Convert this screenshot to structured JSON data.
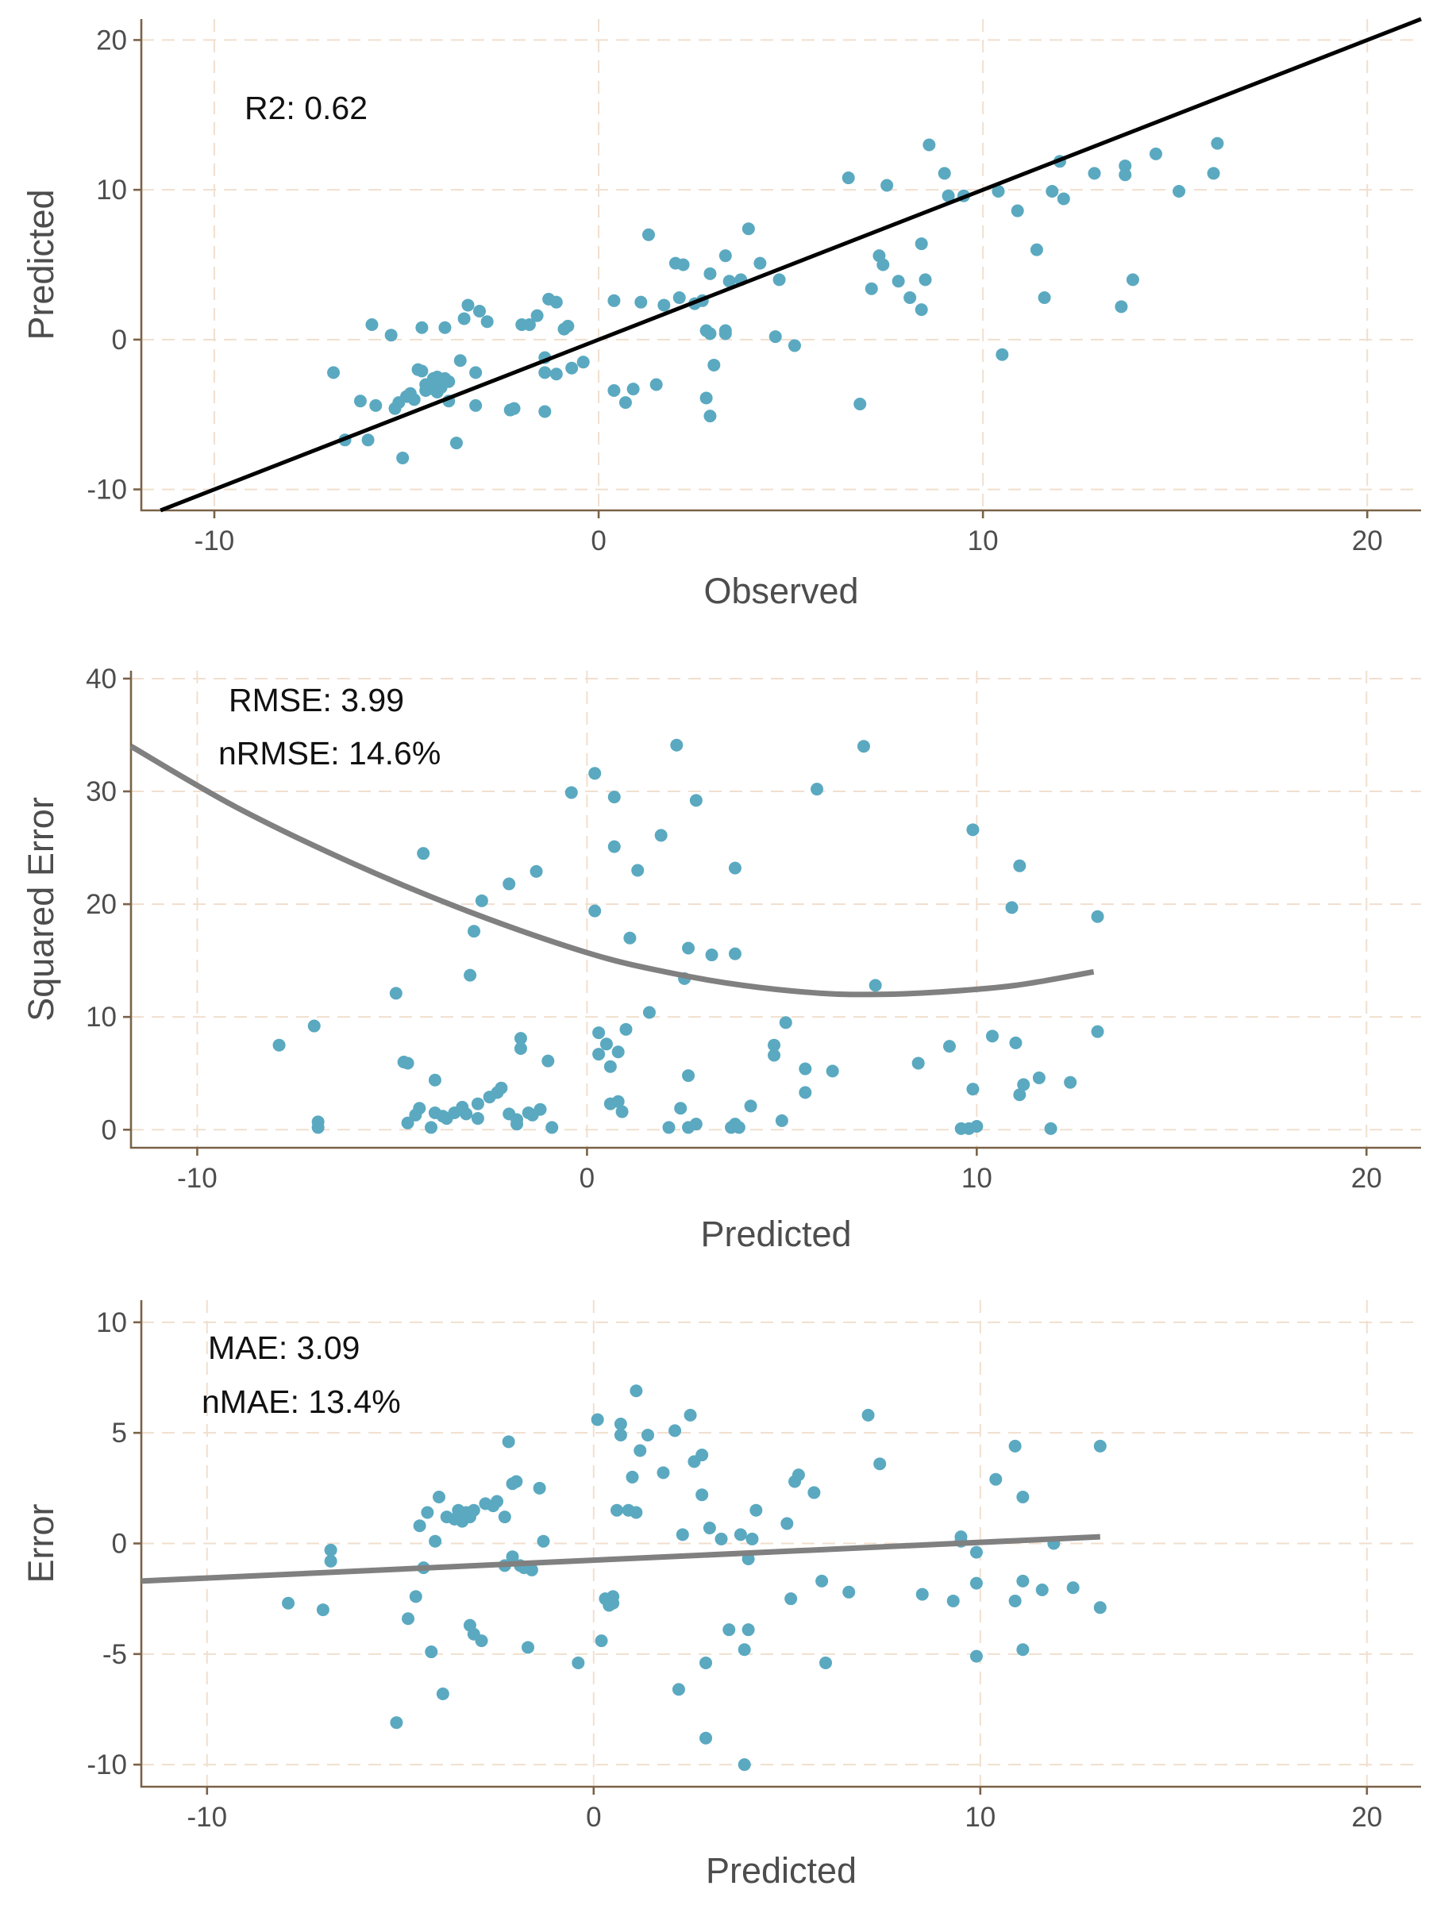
{
  "colors": {
    "points": "#5aa9c0",
    "reference_line": "#000000",
    "smooth_line": "#808080",
    "axis": "#7a6248",
    "grid": "#f1dfce"
  },
  "chart_data": [
    {
      "type": "scatter",
      "xlabel": "Observed",
      "ylabel": "Predicted",
      "xlim": [
        -11.9,
        21.4
      ],
      "ylim": [
        -11.4,
        21.4
      ],
      "xticks": [
        -10,
        0,
        10,
        20
      ],
      "yticks": [
        -10,
        0,
        10,
        20
      ],
      "tick_labels_x": [
        "-10",
        "0",
        "10",
        "20"
      ],
      "tick_labels_y": [
        "-10",
        "0",
        "10",
        "20"
      ],
      "grid": true,
      "annotations": [
        "R2: 0.62"
      ],
      "reference_line": {
        "slope": 1,
        "intercept": 0
      },
      "points": [
        [
          -6.9,
          -2.2
        ],
        [
          -6.6,
          -6.7
        ],
        [
          -6.2,
          -4.1
        ],
        [
          -6.0,
          -6.7
        ],
        [
          -5.9,
          1.0
        ],
        [
          -5.8,
          -4.4
        ],
        [
          -5.4,
          0.3
        ],
        [
          -5.3,
          -4.6
        ],
        [
          -5.2,
          -4.2
        ],
        [
          -5.1,
          -7.9
        ],
        [
          -5.0,
          -3.8
        ],
        [
          -4.9,
          -3.6
        ],
        [
          -4.8,
          -4.0
        ],
        [
          -4.7,
          -2.0
        ],
        [
          -4.6,
          0.8
        ],
        [
          -4.6,
          -2.1
        ],
        [
          -4.5,
          -3.4
        ],
        [
          -4.5,
          -3.0
        ],
        [
          -4.4,
          -3.0
        ],
        [
          -4.3,
          -2.6
        ],
        [
          -4.3,
          -3.3
        ],
        [
          -4.2,
          -2.5
        ],
        [
          -4.2,
          -3.5
        ],
        [
          -4.1,
          -3.2
        ],
        [
          -4.0,
          -2.6
        ],
        [
          -4.0,
          0.8
        ],
        [
          -3.9,
          -2.8
        ],
        [
          -3.9,
          -4.1
        ],
        [
          -3.7,
          -6.9
        ],
        [
          -3.6,
          -1.4
        ],
        [
          -3.5,
          1.4
        ],
        [
          -3.4,
          2.3
        ],
        [
          -3.2,
          -4.4
        ],
        [
          -3.2,
          -2.2
        ],
        [
          -3.1,
          1.9
        ],
        [
          -2.9,
          1.2
        ],
        [
          -2.3,
          -4.7
        ],
        [
          -2.2,
          -4.6
        ],
        [
          -2.0,
          1.0
        ],
        [
          -1.8,
          1.0
        ],
        [
          -1.6,
          1.6
        ],
        [
          -1.4,
          -1.2
        ],
        [
          -1.4,
          -2.2
        ],
        [
          -1.4,
          -4.8
        ],
        [
          -1.3,
          2.7
        ],
        [
          -1.1,
          2.5
        ],
        [
          -1.1,
          -2.3
        ],
        [
          -0.9,
          0.7
        ],
        [
          -0.8,
          0.9
        ],
        [
          -0.7,
          -1.9
        ],
        [
          -0.4,
          -1.5
        ],
        [
          0.4,
          2.6
        ],
        [
          0.4,
          -3.4
        ],
        [
          0.7,
          -4.2
        ],
        [
          0.9,
          -3.3
        ],
        [
          1.1,
          2.5
        ],
        [
          1.3,
          7.0
        ],
        [
          1.5,
          -3.0
        ],
        [
          1.7,
          2.3
        ],
        [
          2.0,
          5.1
        ],
        [
          2.1,
          2.8
        ],
        [
          2.2,
          5.0
        ],
        [
          2.5,
          2.4
        ],
        [
          2.7,
          2.6
        ],
        [
          2.8,
          -3.9
        ],
        [
          2.8,
          0.6
        ],
        [
          2.9,
          4.4
        ],
        [
          2.9,
          0.4
        ],
        [
          2.9,
          -5.1
        ],
        [
          3.0,
          -1.7
        ],
        [
          3.3,
          0.6
        ],
        [
          3.3,
          0.4
        ],
        [
          3.3,
          5.6
        ],
        [
          3.4,
          3.9
        ],
        [
          3.7,
          4.0
        ],
        [
          3.9,
          7.4
        ],
        [
          4.2,
          5.1
        ],
        [
          4.6,
          0.2
        ],
        [
          4.7,
          4.0
        ],
        [
          5.1,
          -0.4
        ],
        [
          6.5,
          10.8
        ],
        [
          6.8,
          -4.3
        ],
        [
          7.1,
          3.4
        ],
        [
          7.3,
          5.6
        ],
        [
          7.4,
          5.0
        ],
        [
          7.5,
          10.3
        ],
        [
          7.8,
          3.9
        ],
        [
          8.1,
          2.8
        ],
        [
          8.4,
          2.0
        ],
        [
          8.4,
          6.4
        ],
        [
          8.5,
          4.0
        ],
        [
          8.6,
          13.0
        ],
        [
          9.0,
          11.1
        ],
        [
          9.1,
          9.6
        ],
        [
          9.5,
          9.6
        ],
        [
          10.4,
          9.9
        ],
        [
          10.5,
          -1.0
        ],
        [
          10.9,
          8.6
        ],
        [
          11.4,
          6.0
        ],
        [
          11.6,
          2.8
        ],
        [
          11.8,
          9.9
        ],
        [
          12.0,
          11.9
        ],
        [
          12.1,
          9.4
        ],
        [
          12.9,
          11.1
        ],
        [
          13.6,
          2.2
        ],
        [
          13.7,
          11.6
        ],
        [
          13.7,
          11.0
        ],
        [
          13.9,
          4.0
        ],
        [
          14.5,
          12.4
        ],
        [
          15.1,
          9.9
        ],
        [
          16.0,
          11.1
        ],
        [
          16.1,
          13.1
        ]
      ]
    },
    {
      "type": "scatter",
      "xlabel": "Predicted",
      "ylabel": "Squared Error",
      "xlim": [
        -11.7,
        21.4
      ],
      "ylim": [
        -1.6,
        40.7
      ],
      "xticks": [
        -10,
        0,
        10,
        20
      ],
      "yticks": [
        0,
        10,
        20,
        30,
        40
      ],
      "tick_labels_x": [
        "-10",
        "0",
        "10",
        "20"
      ],
      "tick_labels_y": [
        "0",
        "10",
        "20",
        "30",
        "40"
      ],
      "grid": true,
      "annotations": [
        "RMSE: 3.99",
        "nRMSE: 14.6%"
      ],
      "smooth_line": [
        [
          -11.7,
          34.0
        ],
        [
          -9,
          28.6
        ],
        [
          -6,
          23.6
        ],
        [
          -3,
          19.3
        ],
        [
          0,
          15.7
        ],
        [
          2,
          14.0
        ],
        [
          4,
          12.8
        ],
        [
          6,
          12.1
        ],
        [
          7.5,
          12.0
        ],
        [
          9,
          12.2
        ],
        [
          11,
          12.8
        ],
        [
          13,
          14.0
        ]
      ],
      "points": [
        [
          -7.9,
          7.5
        ],
        [
          -7.0,
          9.2
        ],
        [
          -6.9,
          0.7
        ],
        [
          -6.9,
          0.2
        ],
        [
          -4.9,
          12.1
        ],
        [
          -4.7,
          6.0
        ],
        [
          -4.6,
          5.9
        ],
        [
          -4.6,
          0.6
        ],
        [
          -4.4,
          1.3
        ],
        [
          -4.3,
          1.9
        ],
        [
          -4.2,
          24.5
        ],
        [
          -4.0,
          0.2
        ],
        [
          -3.9,
          1.5
        ],
        [
          -3.9,
          4.4
        ],
        [
          -3.7,
          1.2
        ],
        [
          -3.6,
          1.0
        ],
        [
          -3.4,
          1.5
        ],
        [
          -3.2,
          2.0
        ],
        [
          -3.1,
          1.4
        ],
        [
          -3.0,
          13.7
        ],
        [
          -2.9,
          17.6
        ],
        [
          -2.8,
          1.0
        ],
        [
          -2.8,
          2.3
        ],
        [
          -2.7,
          20.3
        ],
        [
          -2.5,
          2.9
        ],
        [
          -2.3,
          3.3
        ],
        [
          -2.2,
          3.7
        ],
        [
          -2.0,
          21.8
        ],
        [
          -2.0,
          1.4
        ],
        [
          -1.8,
          0.5
        ],
        [
          -1.8,
          0.9
        ],
        [
          -1.7,
          7.2
        ],
        [
          -1.7,
          8.1
        ],
        [
          -1.5,
          1.5
        ],
        [
          -1.4,
          1.3
        ],
        [
          -1.3,
          22.9
        ],
        [
          -1.2,
          1.8
        ],
        [
          -1.0,
          6.1
        ],
        [
          -0.9,
          0.2
        ],
        [
          -0.4,
          29.9
        ],
        [
          0.2,
          31.6
        ],
        [
          0.2,
          19.4
        ],
        [
          0.3,
          6.7
        ],
        [
          0.3,
          8.6
        ],
        [
          0.5,
          7.6
        ],
        [
          0.6,
          2.3
        ],
        [
          0.6,
          5.6
        ],
        [
          0.7,
          29.5
        ],
        [
          0.7,
          25.1
        ],
        [
          0.8,
          2.5
        ],
        [
          0.8,
          6.9
        ],
        [
          0.9,
          1.6
        ],
        [
          1.0,
          8.9
        ],
        [
          1.1,
          17.0
        ],
        [
          1.3,
          23.0
        ],
        [
          1.6,
          10.4
        ],
        [
          1.9,
          26.1
        ],
        [
          2.1,
          0.2
        ],
        [
          2.3,
          34.1
        ],
        [
          2.4,
          1.9
        ],
        [
          2.5,
          13.4
        ],
        [
          2.6,
          16.1
        ],
        [
          2.6,
          4.8
        ],
        [
          2.6,
          0.2
        ],
        [
          2.8,
          29.2
        ],
        [
          2.8,
          0.5
        ],
        [
          3.2,
          15.5
        ],
        [
          3.7,
          0.2
        ],
        [
          3.8,
          0.5
        ],
        [
          3.8,
          23.2
        ],
        [
          3.8,
          15.6
        ],
        [
          3.9,
          0.2
        ],
        [
          4.2,
          2.1
        ],
        [
          4.8,
          6.6
        ],
        [
          4.8,
          7.5
        ],
        [
          5.1,
          9.5
        ],
        [
          5.0,
          0.8
        ],
        [
          5.6,
          3.3
        ],
        [
          5.6,
          5.4
        ],
        [
          5.9,
          30.2
        ],
        [
          6.3,
          5.2
        ],
        [
          7.1,
          34.0
        ],
        [
          7.4,
          12.8
        ],
        [
          8.5,
          5.9
        ],
        [
          9.3,
          7.4
        ],
        [
          9.6,
          0.1
        ],
        [
          9.8,
          0.1
        ],
        [
          9.9,
          26.6
        ],
        [
          9.9,
          3.6
        ],
        [
          10.0,
          0.3
        ],
        [
          10.4,
          8.3
        ],
        [
          10.9,
          19.7
        ],
        [
          11.0,
          7.7
        ],
        [
          11.1,
          23.4
        ],
        [
          11.1,
          3.1
        ],
        [
          11.2,
          4.0
        ],
        [
          11.6,
          4.6
        ],
        [
          11.9,
          0.1
        ],
        [
          12.4,
          4.2
        ],
        [
          13.1,
          18.9
        ],
        [
          13.1,
          8.7
        ]
      ]
    },
    {
      "type": "scatter",
      "xlabel": "Predicted",
      "ylabel": "Error",
      "xlim": [
        -11.7,
        21.4
      ],
      "ylim": [
        -11.0,
        11.0
      ],
      "xticks": [
        -10,
        0,
        10,
        20
      ],
      "yticks": [
        -10,
        -5,
        0,
        5,
        10
      ],
      "tick_labels_x": [
        "-10",
        "0",
        "10",
        "20"
      ],
      "tick_labels_y": [
        "-10",
        "-5",
        "0",
        "5",
        "10"
      ],
      "grid": true,
      "annotations": [
        "MAE: 3.09",
        "nMAE: 13.4%"
      ],
      "smooth_line": [
        [
          -11.7,
          -1.7
        ],
        [
          13.1,
          0.3
        ]
      ],
      "points": [
        [
          -7.9,
          -2.7
        ],
        [
          -7.0,
          -3.0
        ],
        [
          -6.8,
          -0.3
        ],
        [
          -6.8,
          -0.8
        ],
        [
          -5.1,
          -8.1
        ],
        [
          -4.8,
          -3.4
        ],
        [
          -4.6,
          -2.4
        ],
        [
          -4.5,
          0.8
        ],
        [
          -4.4,
          -1.1
        ],
        [
          -4.3,
          1.4
        ],
        [
          -4.2,
          -4.9
        ],
        [
          -4.1,
          0.1
        ],
        [
          -4.0,
          2.1
        ],
        [
          -3.9,
          -6.8
        ],
        [
          -3.8,
          1.2
        ],
        [
          -3.6,
          1.1
        ],
        [
          -3.5,
          1.5
        ],
        [
          -3.4,
          1.0
        ],
        [
          -3.3,
          1.4
        ],
        [
          -3.2,
          1.2
        ],
        [
          -3.2,
          -3.7
        ],
        [
          -3.1,
          -4.1
        ],
        [
          -3.1,
          1.5
        ],
        [
          -2.9,
          -4.4
        ],
        [
          -2.8,
          1.8
        ],
        [
          -2.6,
          1.7
        ],
        [
          -2.5,
          1.9
        ],
        [
          -2.3,
          -1.0
        ],
        [
          -2.3,
          1.2
        ],
        [
          -2.2,
          4.6
        ],
        [
          -2.1,
          2.7
        ],
        [
          -2.1,
          -0.6
        ],
        [
          -2.0,
          2.8
        ],
        [
          -1.9,
          -1.0
        ],
        [
          -1.8,
          -1.1
        ],
        [
          -1.7,
          -4.7
        ],
        [
          -1.6,
          -1.2
        ],
        [
          -1.4,
          2.5
        ],
        [
          -1.3,
          0.1
        ],
        [
          -0.4,
          -5.4
        ],
        [
          0.1,
          5.6
        ],
        [
          0.2,
          -4.4
        ],
        [
          0.3,
          -2.5
        ],
        [
          0.4,
          -2.8
        ],
        [
          0.5,
          -2.4
        ],
        [
          0.5,
          -2.7
        ],
        [
          0.6,
          1.5
        ],
        [
          0.7,
          5.4
        ],
        [
          0.7,
          4.9
        ],
        [
          0.9,
          1.5
        ],
        [
          1.0,
          3.0
        ],
        [
          1.1,
          1.4
        ],
        [
          1.1,
          6.9
        ],
        [
          1.2,
          4.2
        ],
        [
          1.4,
          4.9
        ],
        [
          1.8,
          3.2
        ],
        [
          2.1,
          5.1
        ],
        [
          2.2,
          -6.6
        ],
        [
          2.3,
          0.4
        ],
        [
          2.5,
          5.8
        ],
        [
          2.6,
          3.7
        ],
        [
          2.8,
          4.0
        ],
        [
          2.8,
          2.2
        ],
        [
          2.9,
          -8.8
        ],
        [
          2.9,
          -5.4
        ],
        [
          3.0,
          0.7
        ],
        [
          3.3,
          0.2
        ],
        [
          3.5,
          -3.9
        ],
        [
          3.8,
          0.4
        ],
        [
          3.9,
          -4.8
        ],
        [
          3.9,
          -10.0
        ],
        [
          4.0,
          -0.7
        ],
        [
          4.0,
          -3.9
        ],
        [
          4.1,
          0.2
        ],
        [
          4.2,
          1.5
        ],
        [
          5.0,
          0.9
        ],
        [
          5.1,
          -2.5
        ],
        [
          5.2,
          2.8
        ],
        [
          5.3,
          3.1
        ],
        [
          5.7,
          2.3
        ],
        [
          5.9,
          -1.7
        ],
        [
          6.0,
          -5.4
        ],
        [
          6.6,
          -2.2
        ],
        [
          7.1,
          5.8
        ],
        [
          7.4,
          3.6
        ],
        [
          8.5,
          -2.3
        ],
        [
          9.3,
          -2.6
        ],
        [
          9.5,
          0.3
        ],
        [
          9.5,
          0.1
        ],
        [
          9.9,
          -1.8
        ],
        [
          9.9,
          -0.4
        ],
        [
          9.9,
          -5.1
        ],
        [
          10.4,
          2.9
        ],
        [
          10.9,
          4.4
        ],
        [
          10.9,
          -2.6
        ],
        [
          11.1,
          -4.8
        ],
        [
          11.1,
          -1.7
        ],
        [
          11.1,
          2.1
        ],
        [
          11.6,
          -2.1
        ],
        [
          11.9,
          0.0
        ],
        [
          12.4,
          -2.0
        ],
        [
          13.1,
          4.4
        ],
        [
          13.1,
          -2.9
        ]
      ]
    }
  ]
}
